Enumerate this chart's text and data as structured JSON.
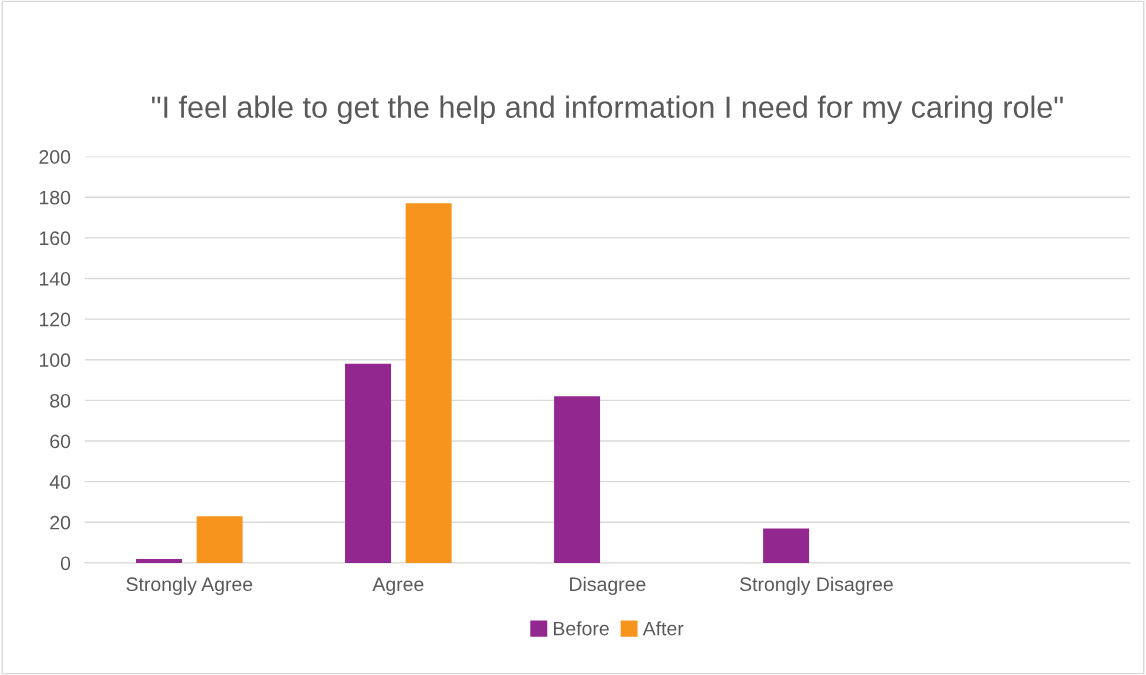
{
  "chart_data": {
    "type": "bar",
    "title": "\"I feel able to get the help and information I need for my caring role\"",
    "categories": [
      "Strongly Agree",
      "Agree",
      "Disagree",
      "Strongly Disagree",
      null
    ],
    "series": [
      {
        "name": "Before",
        "color": "#92278f",
        "values": [
          2,
          98,
          82,
          17,
          null
        ]
      },
      {
        "name": "After",
        "color": "#f7941d",
        "values": [
          23,
          177,
          null,
          null,
          null
        ]
      }
    ],
    "ylim": [
      0,
      200
    ],
    "yticks": [
      0,
      20,
      40,
      60,
      80,
      100,
      120,
      140,
      160,
      180,
      200
    ],
    "grid": "y",
    "legend": "bottom"
  }
}
